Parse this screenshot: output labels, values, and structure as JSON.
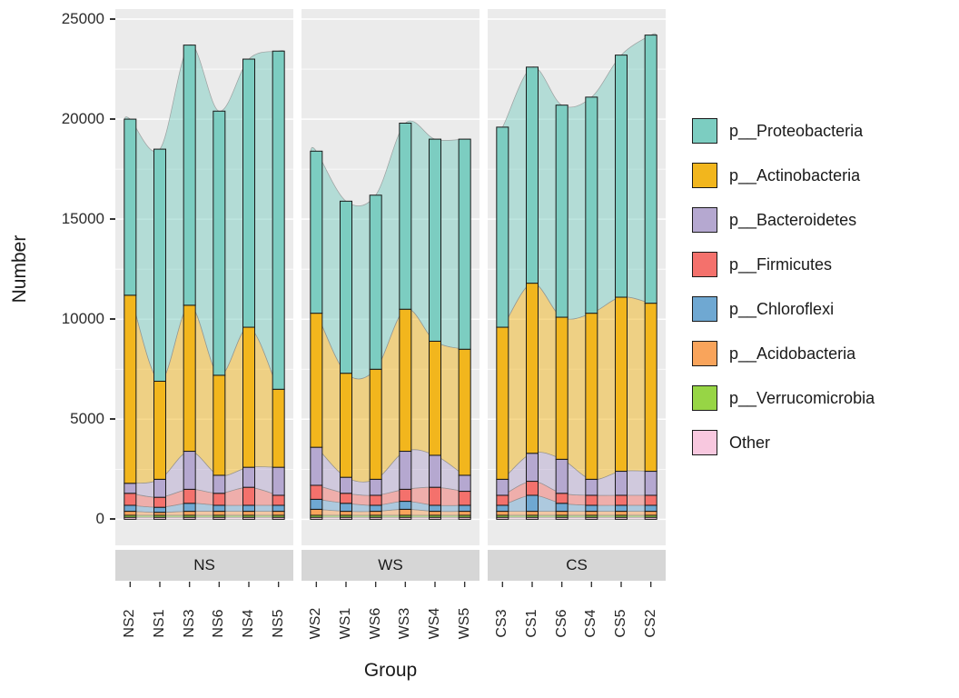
{
  "chart_data": {
    "type": "bar",
    "title": "",
    "xlabel": "Group",
    "ylabel": "Number",
    "ylim": [
      0,
      25000
    ],
    "y_ticks": [
      0,
      5000,
      10000,
      15000,
      20000,
      25000
    ],
    "grid": true,
    "legend_position": "right",
    "stack_order_bottom_to_top": [
      "Other",
      "p__Verrucomicrobia",
      "p__Acidobacteria",
      "p__Chloroflexi",
      "p__Firmicutes",
      "p__Bacteroidetes",
      "p__Actinobacteria",
      "p__Proteobacteria"
    ],
    "legend": [
      {
        "label": "p__Proteobacteria",
        "color": "#7ccdc1"
      },
      {
        "label": "p__Actinobacteria",
        "color": "#f2b61d"
      },
      {
        "label": "p__Bacteroidetes",
        "color": "#b5a8d0"
      },
      {
        "label": "p__Firmicutes",
        "color": "#f4716c"
      },
      {
        "label": "p__Chloroflexi",
        "color": "#6fa8d2"
      },
      {
        "label": "p__Acidobacteria",
        "color": "#f9a45b"
      },
      {
        "label": "p__Verrucomicrobia",
        "color": "#97d545"
      },
      {
        "label": "Other",
        "color": "#f8c8df"
      }
    ],
    "facets": [
      {
        "label": "NS",
        "bars": [
          {
            "label": "NS2",
            "segments": [
              100,
              100,
              200,
              300,
              600,
              500,
              9400,
              8800
            ]
          },
          {
            "label": "NS1",
            "segments": [
              100,
              100,
              150,
              250,
              500,
              900,
              4900,
              11600
            ]
          },
          {
            "label": "NS3",
            "segments": [
              100,
              100,
              200,
              400,
              700,
              1900,
              7300,
              13000
            ]
          },
          {
            "label": "NS6",
            "segments": [
              100,
              100,
              200,
              300,
              600,
              900,
              5000,
              13200
            ]
          },
          {
            "label": "NS4",
            "segments": [
              100,
              100,
              200,
              300,
              900,
              1000,
              7000,
              13400
            ]
          },
          {
            "label": "NS5",
            "segments": [
              100,
              100,
              200,
              300,
              500,
              1400,
              3900,
              16900
            ]
          }
        ]
      },
      {
        "label": "WS",
        "bars": [
          {
            "label": "WS2",
            "segments": [
              100,
              100,
              300,
              500,
              700,
              1900,
              6700,
              8100
            ]
          },
          {
            "label": "WS1",
            "segments": [
              100,
              100,
              200,
              400,
              500,
              800,
              5200,
              8600
            ]
          },
          {
            "label": "WS6",
            "segments": [
              100,
              100,
              200,
              300,
              500,
              800,
              5500,
              8700
            ]
          },
          {
            "label": "WS3",
            "segments": [
              100,
              100,
              300,
              400,
              600,
              1900,
              7100,
              9300
            ]
          },
          {
            "label": "WS4",
            "segments": [
              100,
              100,
              200,
              300,
              900,
              1600,
              5700,
              10100
            ]
          },
          {
            "label": "WS5",
            "segments": [
              100,
              100,
              200,
              300,
              700,
              800,
              6300,
              10500
            ]
          }
        ]
      },
      {
        "label": "CS",
        "bars": [
          {
            "label": "CS3",
            "segments": [
              100,
              100,
              200,
              300,
              500,
              800,
              7600,
              10000
            ]
          },
          {
            "label": "CS1",
            "segments": [
              100,
              100,
              200,
              800,
              700,
              1400,
              8500,
              10800
            ]
          },
          {
            "label": "CS6",
            "segments": [
              100,
              100,
              200,
              400,
              500,
              1700,
              7100,
              10600
            ]
          },
          {
            "label": "CS4",
            "segments": [
              100,
              100,
              200,
              300,
              500,
              800,
              8300,
              10800
            ]
          },
          {
            "label": "CS5",
            "segments": [
              100,
              100,
              200,
              300,
              500,
              1200,
              8700,
              12100
            ]
          },
          {
            "label": "CS2",
            "segments": [
              100,
              100,
              200,
              300,
              500,
              1200,
              8400,
              13400
            ]
          }
        ]
      }
    ],
    "style": {
      "panel_bg": "#ebebeb",
      "grid_color": "#ffffff",
      "strip_bg": "#d6d6d6",
      "bar_outline": "#1a1a1a",
      "ribbon_outline": "#909090"
    }
  }
}
